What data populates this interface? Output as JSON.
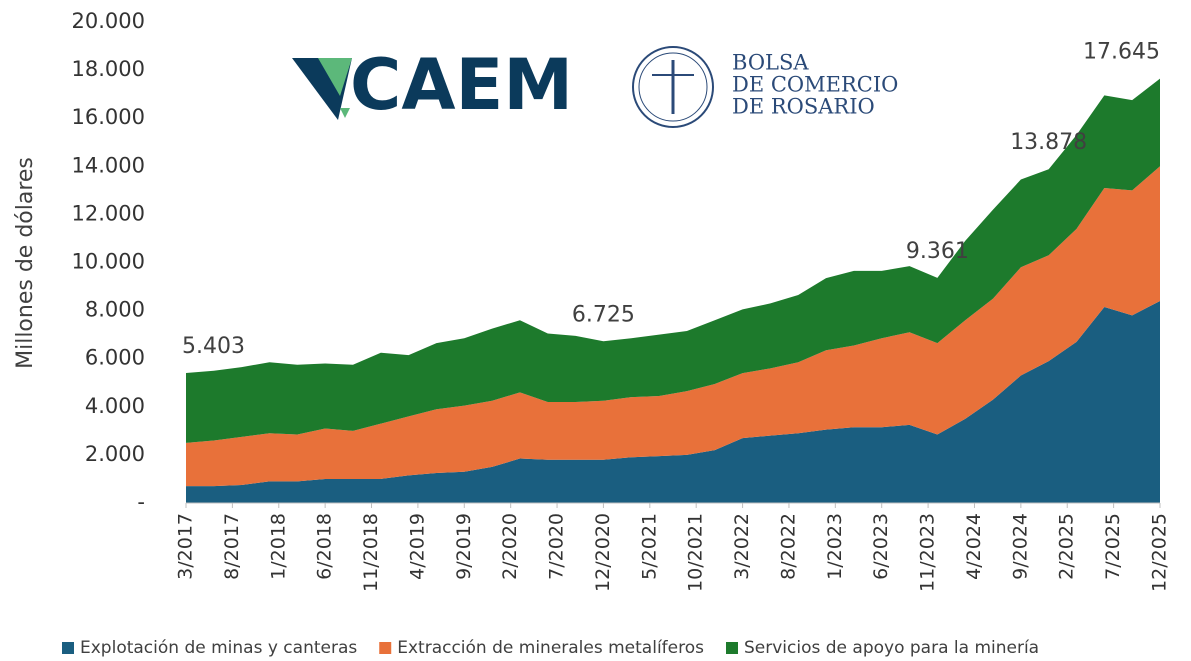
{
  "chart_data": {
    "type": "stacked_area",
    "ylabel": "Millones de dólares",
    "x": [
      "3/2017",
      "6/2017",
      "9/2017",
      "12/2017",
      "3/2018",
      "6/2018",
      "9/2018",
      "12/2018",
      "3/2019",
      "6/2019",
      "9/2019",
      "12/2019",
      "3/2020",
      "6/2020",
      "9/2020",
      "12/2020",
      "3/2021",
      "6/2021",
      "9/2021",
      "12/2021",
      "3/2022",
      "6/2022",
      "9/2022",
      "12/2022",
      "3/2023",
      "6/2023",
      "9/2023",
      "12/2023",
      "3/2024",
      "6/2024",
      "9/2024",
      "12/2024",
      "3/2025",
      "6/2025",
      "9/2025",
      "12/2025"
    ],
    "series": [
      {
        "name": "Explotación de minas y canteras",
        "color": "#1a5e80",
        "values": [
          700,
          700,
          750,
          900,
          900,
          1000,
          1000,
          1000,
          1150,
          1250,
          1300,
          1500,
          1850,
          1800,
          1800,
          1800,
          1900,
          1950,
          2000,
          2200,
          2700,
          2800,
          2900,
          3050,
          3150,
          3150,
          3250,
          2850,
          3500,
          4300,
          5300,
          5900,
          6700,
          8150,
          7800,
          8400
        ]
      },
      {
        "name": "Extracción de minerales metalíferos",
        "color": "#e8713a",
        "values": [
          1800,
          1900,
          2000,
          2000,
          1950,
          2100,
          2000,
          2300,
          2450,
          2650,
          2750,
          2750,
          2750,
          2400,
          2400,
          2450,
          2500,
          2500,
          2650,
          2750,
          2700,
          2800,
          2950,
          3300,
          3400,
          3700,
          3850,
          3800,
          4100,
          4200,
          4500,
          4400,
          4700,
          4950,
          5200,
          5600
        ]
      },
      {
        "name": "Servicios de apoyo para la minería",
        "color": "#1d7a2c",
        "values": [
          2903,
          2900,
          2900,
          2950,
          2900,
          2700,
          2750,
          2950,
          2550,
          2750,
          2800,
          3000,
          3000,
          2850,
          2750,
          2475,
          2450,
          2550,
          2500,
          2650,
          2650,
          2700,
          2800,
          3000,
          3100,
          2800,
          2750,
          2711,
          3300,
          3700,
          3650,
          3578,
          3900,
          3850,
          3750,
          3645
        ]
      }
    ],
    "annotations": [
      {
        "x": "3/2017",
        "value": 5403,
        "label": "5.403"
      },
      {
        "x": "12/2020",
        "value": 6725,
        "label": "6.725"
      },
      {
        "x": "12/2023",
        "value": 9361,
        "label": "9.361"
      },
      {
        "x": "12/2024",
        "value": 13878,
        "label": "13.878"
      },
      {
        "x": "12/2025",
        "value": 17645,
        "label": "17.645"
      }
    ],
    "xticks": [
      "3/2017",
      "8/2017",
      "1/2018",
      "6/2018",
      "11/2018",
      "4/2019",
      "9/2019",
      "2/2020",
      "7/2020",
      "12/2020",
      "5/2021",
      "10/2021",
      "3/2022",
      "8/2022",
      "1/2023",
      "6/2023",
      "11/2023",
      "4/2024",
      "9/2024",
      "2/2025",
      "7/2025",
      "12/2025"
    ],
    "ylim": [
      0,
      20000
    ],
    "yticks": [
      {
        "value": 0,
        "label": "-"
      },
      {
        "value": 2000,
        "label": "2.000"
      },
      {
        "value": 4000,
        "label": "4.000"
      },
      {
        "value": 6000,
        "label": "6.000"
      },
      {
        "value": 8000,
        "label": "8.000"
      },
      {
        "value": 10000,
        "label": "10.000"
      },
      {
        "value": 12000,
        "label": "12.000"
      },
      {
        "value": 14000,
        "label": "14.000"
      },
      {
        "value": 16000,
        "label": "16.000"
      },
      {
        "value": 18000,
        "label": "18.000"
      },
      {
        "value": 20000,
        "label": "20.000"
      }
    ],
    "legend": "bottom"
  },
  "logos": {
    "caem": "CAEM",
    "bcr": [
      "BOLSA",
      "DE COMERCIO",
      "DE ROSARIO"
    ]
  }
}
